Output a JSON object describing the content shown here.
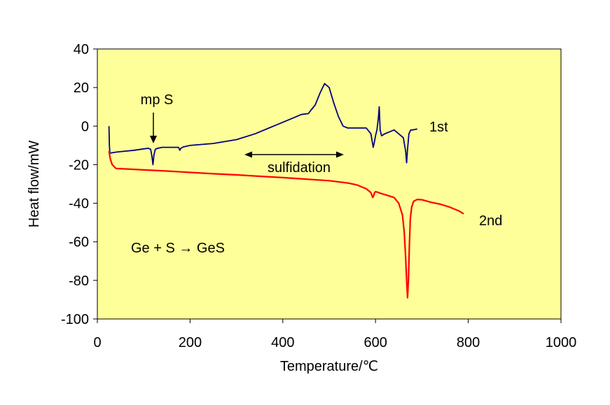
{
  "chart_data": {
    "type": "line",
    "title": "",
    "xlabel": "Temperature/℃",
    "ylabel": "Heat flow/mW",
    "xlim": [
      0,
      1000
    ],
    "ylim": [
      -100,
      40
    ],
    "xticks": [
      0,
      200,
      400,
      600,
      800,
      1000
    ],
    "yticks": [
      -100,
      -80,
      -60,
      -40,
      -20,
      0,
      20,
      40
    ],
    "xtick_labels": [
      "0",
      "200",
      "400",
      "600",
      "800",
      "1000"
    ],
    "ytick_labels": [
      "-100",
      "-80",
      "-60",
      "-40",
      "-20",
      "0",
      "20",
      "40"
    ],
    "grid": false,
    "plot_background": "#ffff99",
    "series": [
      {
        "name": "1st",
        "color": "#000080",
        "x": [
          25,
          26,
          27,
          28,
          40,
          60,
          80,
          100,
          110,
          115,
          118,
          120,
          122,
          125,
          130,
          140,
          160,
          175,
          178,
          180,
          185,
          200,
          250,
          300,
          340,
          380,
          420,
          440,
          455,
          460,
          470,
          480,
          490,
          500,
          510,
          520,
          530,
          540,
          560,
          580,
          590,
          595,
          597,
          600,
          603,
          606,
          608,
          610,
          613,
          620,
          640,
          660,
          665,
          667,
          669,
          672,
          676,
          680,
          690
        ],
        "y": [
          0,
          -10,
          -14,
          -14,
          -13.5,
          -13,
          -12.5,
          -11.8,
          -11.5,
          -12,
          -16,
          -20,
          -15,
          -12,
          -11.5,
          -11,
          -11,
          -11,
          -12.5,
          -11.5,
          -10.8,
          -10,
          -9,
          -7,
          -4,
          0,
          4,
          6,
          6.5,
          8,
          11,
          17,
          22,
          20,
          12,
          5,
          0,
          -1,
          -1,
          -1,
          -4,
          -11,
          -9,
          -5,
          -2,
          4,
          10,
          -2,
          -5,
          -4,
          -2,
          -6,
          -13,
          -19,
          -12,
          -4,
          -2,
          -2,
          -1.5
        ]
      },
      {
        "name": "2nd",
        "color": "#ff0000",
        "x": [
          25,
          28,
          32,
          40,
          60,
          100,
          150,
          200,
          250,
          300,
          350,
          400,
          450,
          500,
          540,
          560,
          580,
          590,
          594,
          596,
          598,
          600,
          605,
          610,
          620,
          640,
          650,
          658,
          662,
          665,
          667,
          669,
          671,
          673,
          675,
          678,
          682,
          690,
          700,
          720,
          740,
          760,
          780,
          790
        ],
        "y": [
          -13,
          -17,
          -20,
          -22,
          -22.2,
          -22.7,
          -23.3,
          -24,
          -24.7,
          -25.3,
          -26,
          -26.7,
          -27.5,
          -28.3,
          -29.5,
          -30.5,
          -32.5,
          -34.5,
          -37,
          -36,
          -34.5,
          -34,
          -34.3,
          -34.8,
          -35.5,
          -37,
          -40,
          -46,
          -55,
          -68,
          -80,
          -89,
          -80,
          -62,
          -48,
          -42,
          -39,
          -38,
          -38.2,
          -39.5,
          -40.5,
          -42,
          -44,
          -45.5
        ]
      }
    ],
    "labels": {
      "first": "1st",
      "second": "2nd"
    },
    "annotations": {
      "mp": "mp S",
      "sulfidation": "sulfidation",
      "reaction": "Ge + S → GeS"
    }
  }
}
